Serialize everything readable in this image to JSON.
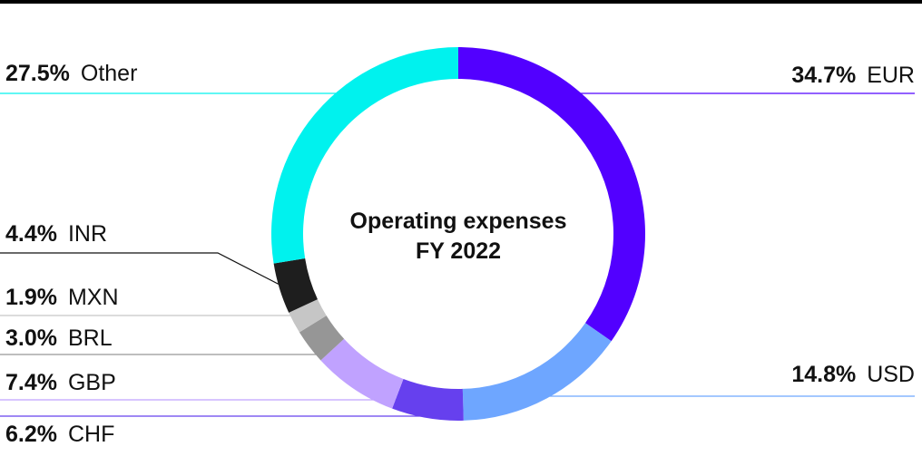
{
  "chart_data": {
    "type": "pie",
    "variant": "donut",
    "title": "Operating expenses",
    "subtitle": "FY 2022",
    "unit": "%",
    "slices": [
      {
        "label": "EUR",
        "value": 34.7,
        "display": "34.7%",
        "color": "#5200ff"
      },
      {
        "label": "USD",
        "value": 14.8,
        "display": "14.8%",
        "color": "#6ea6ff"
      },
      {
        "label": "CHF",
        "value": 6.2,
        "display": "6.2%",
        "color": "#6640ee"
      },
      {
        "label": "GBP",
        "value": 7.4,
        "display": "7.4%",
        "color": "#c0a2ff"
      },
      {
        "label": "BRL",
        "value": 3.0,
        "display": "3.0%",
        "color": "#969696"
      },
      {
        "label": "MXN",
        "value": 1.9,
        "display": "1.9%",
        "color": "#c6c6c6"
      },
      {
        "label": "INR",
        "value": 4.4,
        "display": "4.4%",
        "color": "#1e1e1e"
      },
      {
        "label": "Other",
        "value": 27.5,
        "display": "27.5%",
        "color": "#00f2ee"
      }
    ],
    "legend": "outside labels with leader lines"
  }
}
